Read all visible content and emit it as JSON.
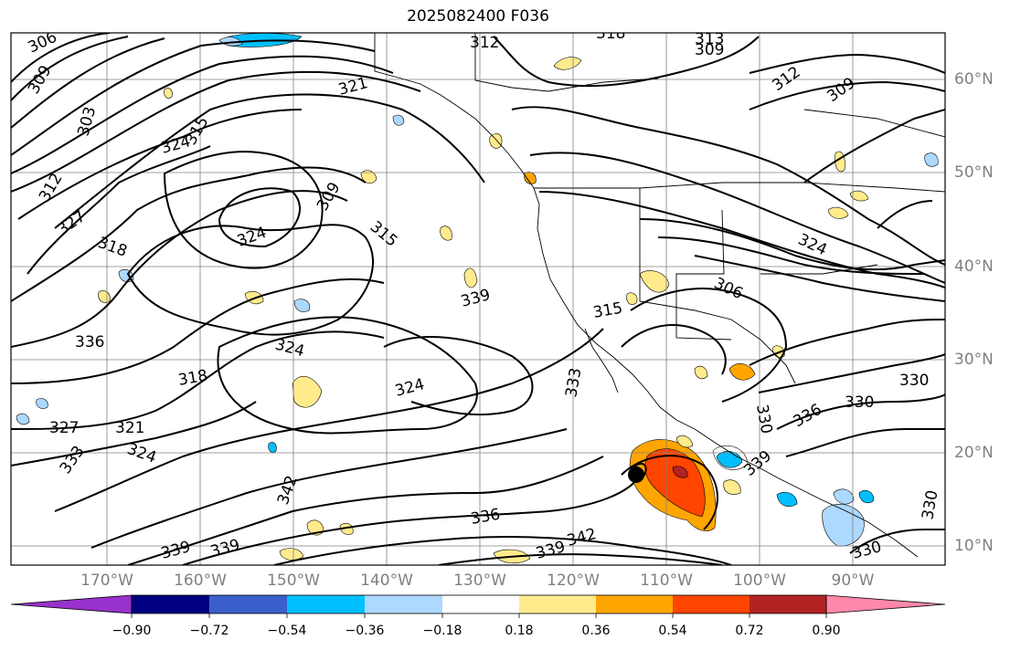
{
  "title": "2025082400 F036",
  "lon_labels": [
    "170°W",
    "160°W",
    "150°W",
    "140°W",
    "130°W",
    "120°W",
    "110°W",
    "100°W",
    "90°W"
  ],
  "lat_labels": [
    "60°N",
    "50°N",
    "40°N",
    "30°N",
    "20°N",
    "10°N"
  ],
  "colorbar": {
    "ticks": [
      "−0.90",
      "−0.72",
      "−0.54",
      "−0.36",
      "−0.18",
      "0.18",
      "0.36",
      "0.54",
      "0.72",
      "0.90"
    ],
    "colors": [
      "#9932cc",
      "#000080",
      "#3a5fcd",
      "#00bfff",
      "#add8ff",
      "#ffffff",
      "#ffeb8c",
      "#ffa500",
      "#ff4500",
      "#b22222",
      "#ff88aa"
    ]
  },
  "contour_labels": [
    "306",
    "309",
    "312",
    "315",
    "318",
    "321",
    "324",
    "327",
    "330",
    "333",
    "336",
    "339",
    "342"
  ],
  "placed_contour_labels": [
    "306",
    "309",
    "312",
    "318",
    "313",
    "309",
    "312",
    "309",
    "303",
    "324",
    "315",
    "321",
    "312",
    "327",
    "318",
    "324",
    "309",
    "315",
    "324",
    "306",
    "339",
    "315",
    "336",
    "324",
    "318",
    "324",
    "333",
    "327",
    "321",
    "324",
    "333",
    "330",
    "336",
    "330",
    "330",
    "342",
    "339",
    "339",
    "336",
    "339",
    "342",
    "339",
    "330",
    "330"
  ],
  "color_palette": {
    "frame": "#000000",
    "grid": "#808080",
    "contour": "#000000",
    "coast": "#000000"
  }
}
